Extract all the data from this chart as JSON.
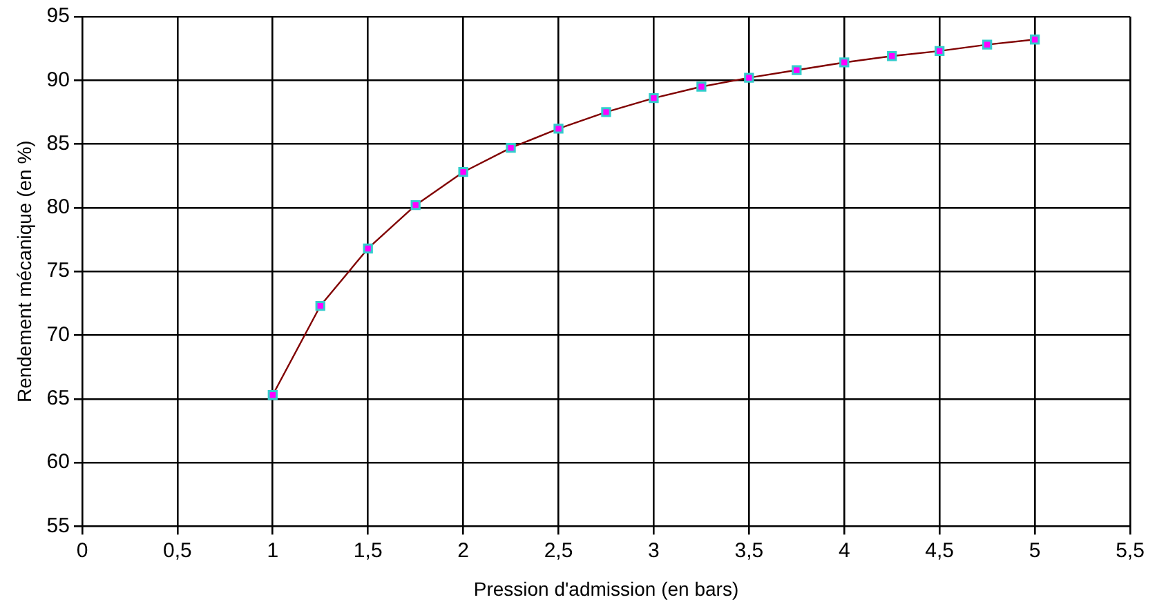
{
  "chart_data": {
    "type": "line",
    "xlabel": "Pression d'admission (en bars)",
    "ylabel": "Rendement mécanique (en %)",
    "x": [
      1,
      1.25,
      1.5,
      1.75,
      2,
      2.25,
      2.5,
      2.75,
      3,
      3.25,
      3.5,
      3.75,
      4,
      4.25,
      4.5,
      4.75,
      5
    ],
    "series": [
      {
        "color": "#800000",
        "values": [
          65.3,
          72.3,
          76.8,
          80.2,
          82.8,
          84.7,
          86.2,
          87.5,
          88.6,
          89.5,
          90.2,
          90.8,
          91.4,
          91.9,
          92.3,
          92.8,
          93.2
        ]
      }
    ],
    "xlim": [
      0,
      5.5
    ],
    "xticks": [
      0,
      {
        "value": 0.5,
        "label": "0,5"
      },
      1,
      {
        "value": 1.5,
        "label": "1,5"
      },
      2,
      {
        "value": 2.5,
        "label": "2,5"
      },
      3,
      {
        "value": 3.5,
        "label": "3,5"
      },
      4,
      {
        "value": 4.5,
        "label": "4,5"
      },
      5,
      {
        "value": 5.5,
        "label": "5,5"
      }
    ],
    "ylim": [
      55,
      95
    ],
    "yticks": [
      55,
      60,
      65,
      70,
      75,
      80,
      85,
      90,
      95
    ],
    "grid": true,
    "marker": "square",
    "line_style": "solid"
  }
}
